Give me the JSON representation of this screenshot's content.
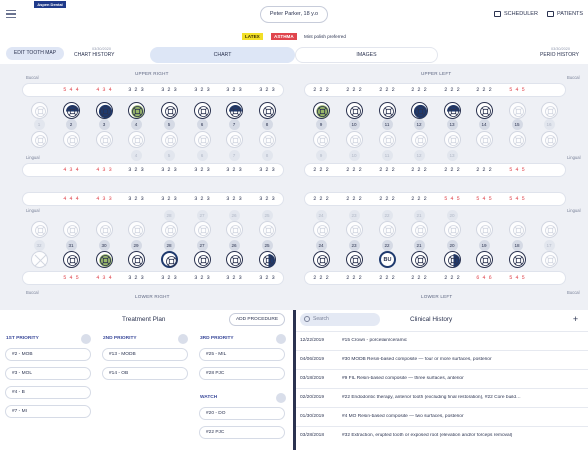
{
  "header": {
    "logo": "Aspen Dental",
    "patient": "Peter Parker, 18 y.o",
    "scheduler": "SCHEDULER",
    "patients": "PATIENTS"
  },
  "alerts": {
    "latex": "LATEX",
    "asthma": "ASTHMA",
    "note": "Mint polish preferred"
  },
  "tabs": {
    "edit": "EDIT TOOTH MAP",
    "chart_history": "CHART HISTORY",
    "chart_history_date": "03/30/2020",
    "chart": "CHART",
    "images": "IMAGES",
    "perio_history": "PERIO HISTORY",
    "perio_history_date": "03/30/2020"
  },
  "chart": {
    "upper_right": "UPPER RIGHT",
    "upper_left": "UPPER LEFT",
    "lower_right": "LOWER RIGHT",
    "lower_left": "LOWER LEFT",
    "buccal": "Buccal",
    "lingual": "Lingual",
    "upper_buccal_right": [
      "5 4 4",
      "4 3 4",
      "3 2 3",
      "3 2 3",
      "3 2 3",
      "3 2 3",
      "3 2 3"
    ],
    "upper_buccal_left": [
      "2 2 2",
      "2 2 2",
      "2 2 2",
      "2 2 2",
      "2 2 2",
      "2 2 2",
      "5 4 5"
    ],
    "upper_lingual_right": [
      "4 3 4",
      "4 3 3",
      "3 2 3",
      "3 2 3",
      "3 2 3",
      "3 2 3",
      "3 2 3"
    ],
    "upper_lingual_left": [
      "2 2 2",
      "2 2 2",
      "2 2 2",
      "2 2 2",
      "2 2 2",
      "2 2 2",
      "5 4 5"
    ],
    "lower_lingual_right": [
      "4 4 4",
      "4 3 3",
      "3 2 3",
      "3 2 3",
      "3 2 3",
      "3 2 3",
      "3 2 3"
    ],
    "lower_lingual_left": [
      "2 2 2",
      "2 2 2",
      "2 2 2",
      "2 2 2",
      "5 4 5",
      "5 4 5",
      "5 4 5"
    ],
    "lower_buccal_right": [
      "5 4 5",
      "4 3 4",
      "3 2 3",
      "3 2 3",
      "3 2 3",
      "3 2 3",
      "3 2 3"
    ],
    "lower_buccal_left": [
      "2 2 2",
      "2 2 2",
      "2 2 2",
      "2 2 2",
      "2 2 2",
      "6 4 6",
      "5 4 5"
    ],
    "upper_numbers": [
      "1",
      "2",
      "3",
      "4",
      "5",
      "6",
      "7",
      "8",
      "9",
      "10",
      "11",
      "12",
      "13",
      "14",
      "15",
      "16"
    ],
    "lower_numbers": [
      "32",
      "31",
      "30",
      "29",
      "28",
      "27",
      "26",
      "25",
      "24",
      "23",
      "22",
      "21",
      "20",
      "19",
      "18",
      "17"
    ],
    "inner_upper_right": [
      "4",
      "5",
      "6",
      "7",
      "8"
    ],
    "inner_upper_left": [
      "9",
      "10",
      "11",
      "12",
      "13"
    ],
    "inner_lower_right": [
      "28",
      "27",
      "26",
      "25"
    ],
    "inner_lower_left": [
      "24",
      "23",
      "22",
      "21",
      "20"
    ],
    "bu_label": "BU"
  },
  "treatment": {
    "title": "Treatment Plan",
    "add": "ADD PROCEDURE",
    "p1": "1ST PRIORITY",
    "p2": "2ND PRIORITY",
    "p3": "3RD PRIORITY",
    "watch": "WATCH",
    "p1_items": [
      "#2 - MOB",
      "#3 - MOL",
      "#4 - B",
      "#7 - MI"
    ],
    "p2_items": [
      "#13 - MODB",
      "#14 - OB"
    ],
    "p3_items": [
      "#25 - MIL",
      "#28 PJC"
    ],
    "watch_items": [
      "#20 - DO",
      "#22 PJC"
    ]
  },
  "history": {
    "title": "Clinical History",
    "search": "Search",
    "rows": [
      {
        "date": "12/22/2019",
        "text": "#15 Crown - porcelain/ceramic"
      },
      {
        "date": "04/06/2019",
        "text": "#30 MODB Resin-based composite — four or more surfaces, posterior"
      },
      {
        "date": "03/18/2019",
        "text": "#9 FIL Resin-based composite — three surfaces, anterior"
      },
      {
        "date": "02/20/2019",
        "text": "#22 Endodontic therapy, anterior tooth (excluding final restoration), #22 Core build…"
      },
      {
        "date": "01/30/2019",
        "text": "#4 MO Resin-based composite — two surfaces, posterior"
      },
      {
        "date": "03/28/2018",
        "text": "#32 Extraction, erupted tooth or exposed root (elevation and/or forceps removal)"
      }
    ]
  }
}
